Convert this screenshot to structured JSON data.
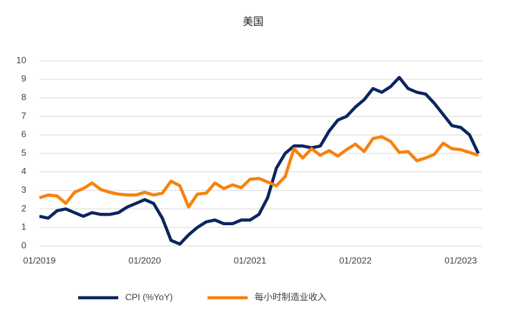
{
  "chart_data": {
    "type": "line",
    "title": "美国",
    "categories": [
      "01/2019",
      null,
      null,
      null,
      null,
      null,
      null,
      null,
      null,
      null,
      null,
      null,
      "01/2020",
      null,
      null,
      null,
      null,
      null,
      null,
      null,
      null,
      null,
      null,
      null,
      "01/2021",
      null,
      null,
      null,
      null,
      null,
      null,
      null,
      null,
      null,
      null,
      null,
      "01/2022",
      null,
      null,
      null,
      null,
      null,
      null,
      null,
      null,
      null,
      null,
      null,
      "01/2023",
      null,
      null
    ],
    "series": [
      {
        "name": "CPI (%YoY)",
        "color": "#0b2560",
        "values": [
          1.6,
          1.5,
          1.9,
          2.0,
          1.8,
          1.6,
          1.8,
          1.7,
          1.7,
          1.8,
          2.1,
          2.3,
          2.5,
          2.3,
          1.5,
          0.3,
          0.1,
          0.6,
          1.0,
          1.3,
          1.4,
          1.2,
          1.2,
          1.4,
          1.4,
          1.7,
          2.6,
          4.2,
          5.0,
          5.4,
          5.4,
          5.3,
          5.4,
          6.2,
          6.8,
          7.0,
          7.5,
          7.9,
          8.5,
          8.3,
          8.6,
          9.1,
          8.5,
          8.3,
          8.2,
          7.7,
          7.1,
          6.5,
          6.4,
          6.0,
          5.0
        ]
      },
      {
        "name": "每小时制造业收入",
        "color": "#f7820f",
        "values": [
          2.6,
          2.75,
          2.7,
          2.3,
          2.9,
          3.1,
          3.4,
          3.05,
          2.9,
          2.8,
          2.75,
          2.75,
          2.9,
          2.75,
          2.85,
          3.5,
          3.25,
          2.1,
          2.8,
          2.85,
          3.4,
          3.1,
          3.3,
          3.15,
          3.6,
          3.65,
          3.45,
          3.25,
          3.75,
          5.25,
          4.75,
          5.25,
          4.9,
          5.15,
          4.85,
          5.2,
          5.5,
          5.1,
          5.8,
          5.9,
          5.65,
          5.05,
          5.1,
          4.6,
          4.75,
          4.95,
          5.55,
          5.25,
          5.2,
          5.05,
          4.9
        ]
      }
    ],
    "ylim": [
      0,
      10
    ],
    "yticks": [
      0,
      1,
      2,
      3,
      4,
      5,
      6,
      7,
      8,
      9,
      10
    ],
    "grid": true
  }
}
